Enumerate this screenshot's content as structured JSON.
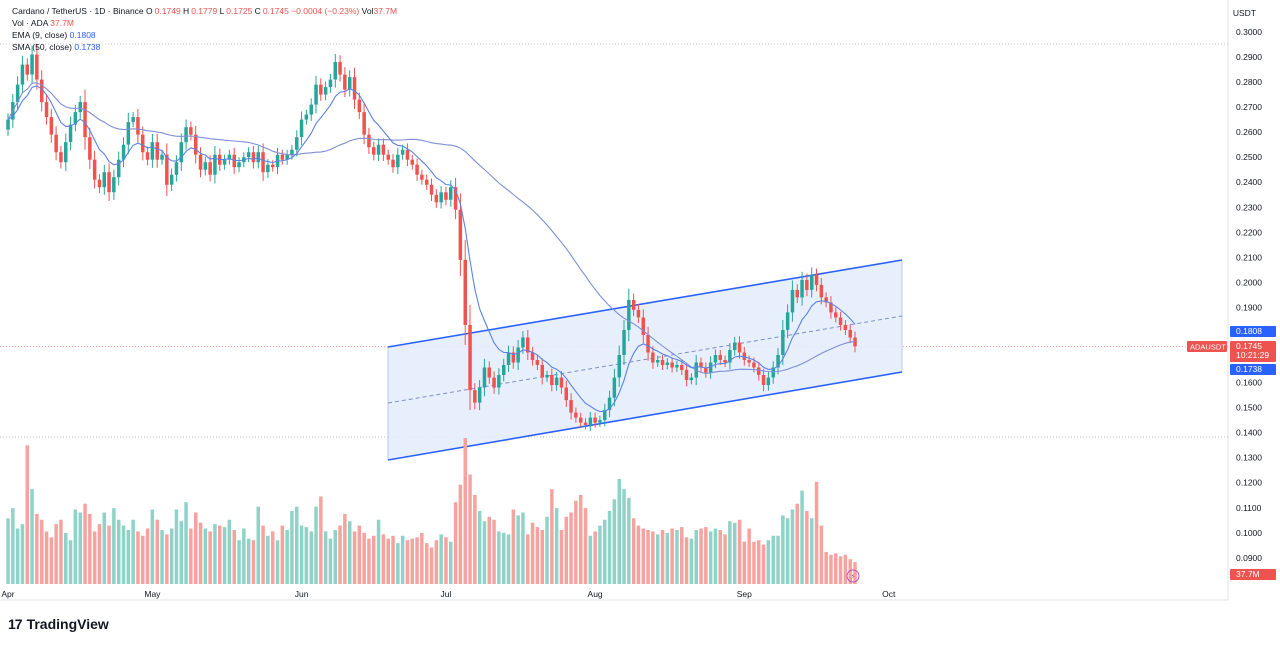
{
  "header": {
    "symbol_line": "Cardano / TetherUS · 1D · Binance",
    "ohlc": [
      {
        "k": "O",
        "v": "0.1749"
      },
      {
        "k": "H",
        "v": "0.1779"
      },
      {
        "k": "L",
        "v": "0.1725"
      },
      {
        "k": "C",
        "v": "0.1745"
      }
    ],
    "change": "−0.0004 (−0.23%)",
    "vol_label": "Vol",
    "vol_value": "37.7M",
    "vol_row_label": "Vol · ADA",
    "vol_row_value": "37.7M",
    "ema_label": "EMA (9, close)",
    "ema_value": "0.1808",
    "sma_label": "SMA (50, close)",
    "sma_value": "0.1738"
  },
  "currency": "USDT",
  "brand": {
    "logo": "17",
    "name": "TradingView"
  },
  "colors": {
    "up": "#26a69a",
    "down": "#ef5350",
    "vol_up": "#8fd3c8",
    "vol_down": "#f6a39f",
    "ema": "#5b82e6",
    "sma": "#7e8fd8",
    "channel": "#2962ff",
    "channel_fill": "#e3ecfd",
    "price_tag": "#ef5350",
    "ema_tag": "#2962ff",
    "sma_tag": "#2962ff"
  },
  "chart_data": {
    "type": "candlestick",
    "y_axis": {
      "ticks": [
        "0.3000",
        "0.2900",
        "0.2800",
        "0.2700",
        "0.2600",
        "0.2500",
        "0.2400",
        "0.2300",
        "0.2200",
        "0.2100",
        "0.2000",
        "0.1900",
        "0.1800",
        "0.1700",
        "0.1600",
        "0.1500",
        "0.1400",
        "0.1300",
        "0.1200",
        "0.1100",
        "0.1000",
        "0.0900"
      ],
      "range": [
        0.0812,
        0.3048
      ]
    },
    "x_axis": {
      "labels": [
        "Apr",
        "May",
        "Jun",
        "Jul",
        "Aug",
        "Sep",
        "Oct"
      ]
    },
    "close": [
      0.265,
      0.272,
      0.279,
      0.287,
      0.283,
      0.291,
      0.281,
      0.272,
      0.266,
      0.259,
      0.252,
      0.248,
      0.256,
      0.263,
      0.268,
      0.272,
      0.258,
      0.249,
      0.241,
      0.238,
      0.244,
      0.236,
      0.242,
      0.249,
      0.255,
      0.264,
      0.266,
      0.259,
      0.252,
      0.249,
      0.256,
      0.249,
      0.251,
      0.239,
      0.243,
      0.248,
      0.256,
      0.262,
      0.259,
      0.251,
      0.245,
      0.248,
      0.243,
      0.251,
      0.247,
      0.249,
      0.251,
      0.246,
      0.248,
      0.25,
      0.252,
      0.248,
      0.252,
      0.244,
      0.247,
      0.246,
      0.251,
      0.249,
      0.251,
      0.253,
      0.258,
      0.265,
      0.267,
      0.271,
      0.279,
      0.275,
      0.278,
      0.281,
      0.288,
      0.283,
      0.277,
      0.282,
      0.273,
      0.268,
      0.259,
      0.254,
      0.251,
      0.255,
      0.251,
      0.249,
      0.246,
      0.251,
      0.253,
      0.249,
      0.247,
      0.243,
      0.241,
      0.239,
      0.235,
      0.232,
      0.236,
      0.233,
      0.238,
      0.229,
      0.209,
      0.183,
      0.157,
      0.152,
      0.158,
      0.166,
      0.162,
      0.158,
      0.163,
      0.167,
      0.172,
      0.168,
      0.174,
      0.178,
      0.172,
      0.169,
      0.167,
      0.162,
      0.163,
      0.159,
      0.162,
      0.158,
      0.153,
      0.148,
      0.146,
      0.144,
      0.143,
      0.146,
      0.144,
      0.145,
      0.149,
      0.154,
      0.162,
      0.171,
      0.181,
      0.193,
      0.189,
      0.186,
      0.179,
      0.172,
      0.168,
      0.169,
      0.167,
      0.168,
      0.166,
      0.167,
      0.165,
      0.161,
      0.162,
      0.168,
      0.166,
      0.164,
      0.168,
      0.171,
      0.169,
      0.168,
      0.173,
      0.176,
      0.172,
      0.169,
      0.168,
      0.166,
      0.163,
      0.159,
      0.162,
      0.166,
      0.171,
      0.181,
      0.188,
      0.197,
      0.194,
      0.201,
      0.197,
      0.203,
      0.199,
      0.194,
      0.192,
      0.188,
      0.186,
      0.183,
      0.181,
      0.178,
      0.1745
    ],
    "volume_relative": [
      0.45,
      0.52,
      0.38,
      0.41,
      0.95,
      0.65,
      0.48,
      0.44,
      0.36,
      0.32,
      0.41,
      0.44,
      0.35,
      0.3,
      0.51,
      0.49,
      0.55,
      0.48,
      0.36,
      0.41,
      0.49,
      0.4,
      0.52,
      0.44,
      0.4,
      0.37,
      0.44,
      0.36,
      0.33,
      0.38,
      0.51,
      0.44,
      0.37,
      0.34,
      0.38,
      0.51,
      0.43,
      0.56,
      0.38,
      0.49,
      0.42,
      0.38,
      0.36,
      0.41,
      0.4,
      0.39,
      0.44,
      0.37,
      0.3,
      0.38,
      0.31,
      0.3,
      0.53,
      0.4,
      0.33,
      0.36,
      0.3,
      0.4,
      0.37,
      0.5,
      0.53,
      0.4,
      0.39,
      0.36,
      0.53,
      0.6,
      0.36,
      0.31,
      0.37,
      0.4,
      0.48,
      0.43,
      0.36,
      0.4,
      0.35,
      0.31,
      0.33,
      0.44,
      0.34,
      0.31,
      0.33,
      0.28,
      0.33,
      0.3,
      0.31,
      0.32,
      0.35,
      0.28,
      0.25,
      0.3,
      0.34,
      0.32,
      0.29,
      0.56,
      0.68,
      1.0,
      0.75,
      0.61,
      0.5,
      0.43,
      0.46,
      0.44,
      0.36,
      0.35,
      0.34,
      0.51,
      0.47,
      0.49,
      0.34,
      0.42,
      0.39,
      0.37,
      0.46,
      0.65,
      0.52,
      0.37,
      0.46,
      0.49,
      0.57,
      0.61,
      0.52,
      0.33,
      0.36,
      0.4,
      0.44,
      0.5,
      0.58,
      0.72,
      0.65,
      0.59,
      0.45,
      0.4,
      0.38,
      0.37,
      0.36,
      0.34,
      0.37,
      0.35,
      0.38,
      0.37,
      0.39,
      0.32,
      0.31,
      0.37,
      0.38,
      0.39,
      0.36,
      0.38,
      0.37,
      0.34,
      0.43,
      0.42,
      0.44,
      0.29,
      0.38,
      0.29,
      0.3,
      0.27,
      0.3,
      0.33,
      0.33,
      0.47,
      0.45,
      0.51,
      0.55,
      0.64,
      0.5,
      0.45,
      0.7,
      0.4,
      0.22,
      0.2,
      0.21,
      0.19,
      0.2,
      0.17,
      0.15,
      0.12
    ]
  },
  "tags": {
    "ema": "0.1808",
    "price_symbol": "ADAUSDT",
    "price": "0.1745",
    "countdown": "10:21:29",
    "sma": "0.1738",
    "volume": "37.7M"
  }
}
